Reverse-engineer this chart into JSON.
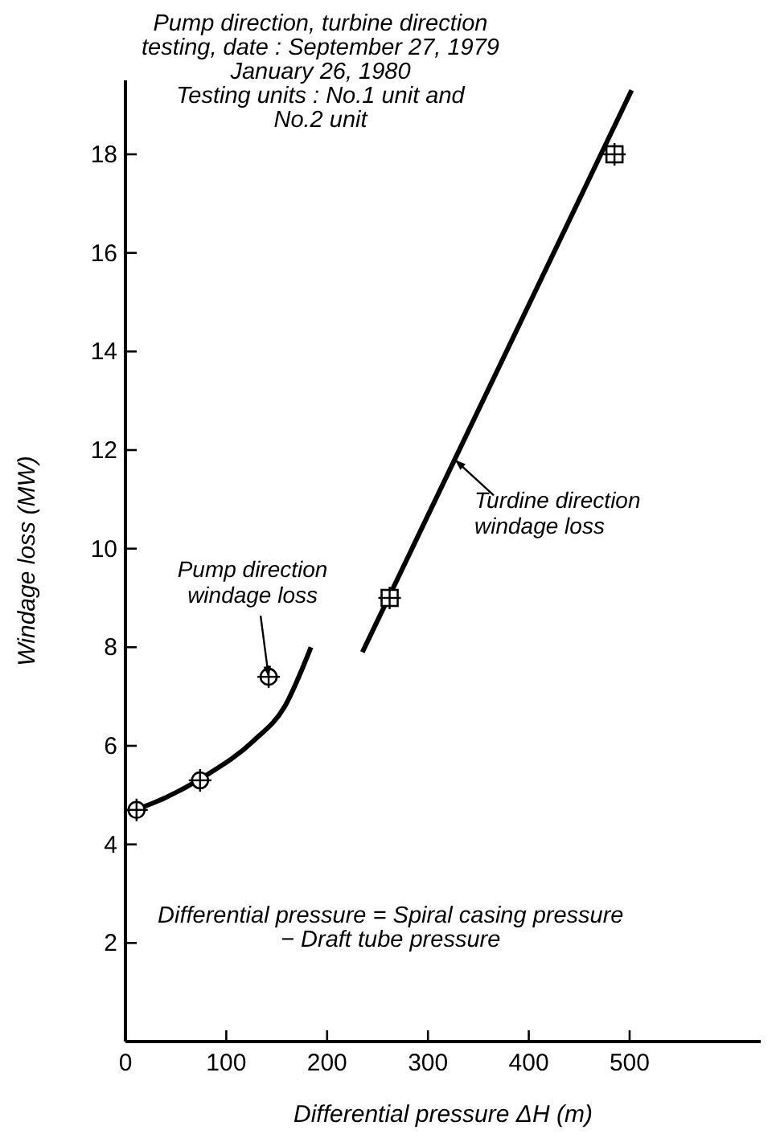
{
  "chart_data": {
    "type": "line",
    "xlabel": "Differential pressure ΔH (m)",
    "ylabel": "Windage loss  (MW)",
    "xlim": [
      0,
      630
    ],
    "xticks": [
      0,
      100,
      200,
      300,
      400,
      500
    ],
    "ylim": [
      0,
      19.5
    ],
    "yticks": [
      2,
      4,
      6,
      8,
      10,
      12,
      14,
      16,
      18
    ],
    "grid": false,
    "annotations": [
      "Pump direction, turbine direction\ntesting, date : September 27, 1979\nJanuary 26, 1980\nTesting units : No.1 unit and\nNo.2 unit",
      "Differential pressure = Spiral casing pressure\n− Draft tube pressure",
      {
        "text": "Pump direction\nwindage loss",
        "x": 142,
        "y": 7.4
      },
      {
        "text": "Turdine direction\nwindage loss",
        "x": 327,
        "y": 11.8
      }
    ],
    "series": [
      {
        "type": "scatter",
        "marker": "circle",
        "color": "#000000",
        "x": [
          11,
          74,
          142
        ],
        "values": [
          4.7,
          5.3,
          7.4
        ]
      },
      {
        "marker": "none",
        "color": "#000000",
        "x": [
          3,
          40,
          80,
          127,
          158,
          184
        ],
        "values": [
          4.65,
          4.95,
          5.4,
          6.1,
          6.8,
          8.0
        ]
      },
      {
        "type": "scatter",
        "marker": "square",
        "color": "#000000",
        "x": [
          262,
          485
        ],
        "values": [
          9.0,
          18.0
        ]
      },
      {
        "marker": "none",
        "color": "#000000",
        "x": [
          235,
          502
        ],
        "values": [
          7.9,
          19.3
        ]
      }
    ]
  }
}
